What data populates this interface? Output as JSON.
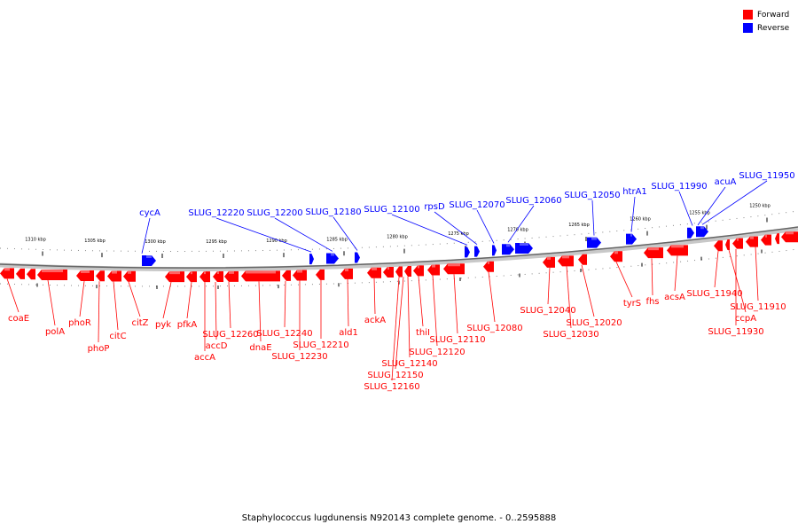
{
  "legend": {
    "forward_label": "Forward",
    "reverse_label": "Reverse",
    "forward_color": "#ff0000",
    "reverse_color": "#0000ff"
  },
  "caption": "Staphylococcus lugdunensis N920143 complete genome. - 0..2595888",
  "ticks": [
    "1310 kbp",
    "1305 kbp",
    "1300 kbp",
    "1295 kbp",
    "1290 kbp",
    "1285 kbp",
    "1280 kbp",
    "1275 kbp",
    "1270 kbp",
    "1265 kbp",
    "1260 kbp",
    "1255 kbp",
    "1250 kbp"
  ],
  "reverse_labels": [
    "cycA",
    "SLUG_12220",
    "SLUG_12200",
    "SLUG_12180",
    "SLUG_12100",
    "rpsD",
    "SLUG_12070",
    "SLUG_12060",
    "SLUG_12050",
    "htrA1",
    "SLUG_11990",
    "acuA",
    "SLUG_11950"
  ],
  "forward_labels": [
    "coaE",
    "polA",
    "phoR",
    "phoP",
    "citC",
    "citZ",
    "pyk",
    "pfkA",
    "accA",
    "accD",
    "SLUG_12260",
    "dnaE",
    "SLUG_12240",
    "SLUG_12230",
    "SLUG_12210",
    "ald1",
    "ackA",
    "SLUG_12160",
    "SLUG_12150",
    "SLUG_12140",
    "thiI",
    "SLUG_12120",
    "SLUG_12110",
    "SLUG_12080",
    "SLUG_12040",
    "SLUG_12030",
    "SLUG_12020",
    "tyrS",
    "fhs",
    "acsA",
    "SLUG_11940",
    "ccpA",
    "SLUG_11930",
    "SLUG_11910"
  ]
}
